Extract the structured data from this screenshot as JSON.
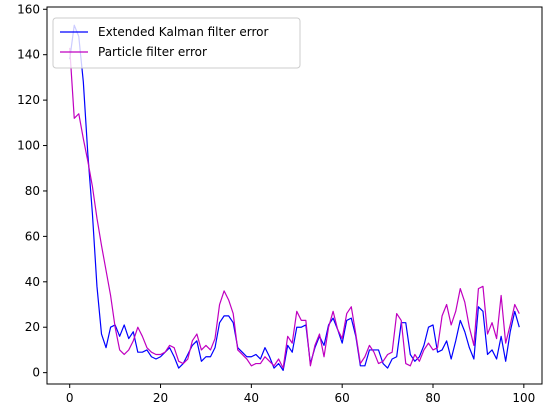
{
  "chart_data": {
    "type": "line",
    "title": "",
    "xlabel": "",
    "ylabel": "",
    "xlim": [
      -5,
      104
    ],
    "ylim": [
      -5,
      161
    ],
    "xticks": [
      0,
      20,
      40,
      60,
      80,
      100
    ],
    "yticks": [
      0,
      20,
      40,
      60,
      80,
      100,
      120,
      140,
      160
    ],
    "grid": false,
    "legend_position": "top-left",
    "series": [
      {
        "name": "Extended Kalman filter error",
        "color": "#0000ff",
        "x": [
          0,
          1,
          2,
          3,
          4,
          5,
          6,
          7,
          8,
          9,
          10,
          11,
          12,
          13,
          14,
          15,
          16,
          17,
          18,
          19,
          20,
          21,
          22,
          23,
          24,
          25,
          26,
          27,
          28,
          29,
          30,
          31,
          32,
          33,
          34,
          35,
          36,
          37,
          38,
          39,
          40,
          41,
          42,
          43,
          44,
          45,
          46,
          47,
          48,
          49,
          50,
          51,
          52,
          53,
          54,
          55,
          56,
          57,
          58,
          59,
          60,
          61,
          62,
          63,
          64,
          65,
          66,
          67,
          68,
          69,
          70,
          71,
          72,
          73,
          74,
          75,
          76,
          77,
          78,
          79,
          80,
          81,
          82,
          83,
          84,
          85,
          86,
          87,
          88,
          89,
          90,
          91,
          92,
          93,
          94,
          95,
          96,
          97,
          98,
          99
        ],
        "values": [
          138,
          153,
          148,
          128,
          96,
          70,
          38,
          17,
          11,
          20,
          21,
          16,
          21,
          15,
          18,
          9,
          9,
          10,
          7,
          6,
          7,
          9,
          11,
          7,
          2,
          4,
          8,
          12,
          14,
          5,
          7,
          7,
          11,
          22,
          25,
          25,
          22,
          11,
          9,
          7,
          7,
          8,
          6,
          11,
          7,
          2,
          4,
          1,
          12,
          9,
          20,
          20,
          21,
          4,
          11,
          16,
          12,
          21,
          24,
          19,
          13,
          23,
          24,
          16,
          3,
          3,
          10,
          10,
          10,
          4,
          2,
          6,
          7,
          22,
          22,
          8,
          5,
          7,
          12,
          20,
          21,
          9,
          10,
          14,
          6,
          14,
          23,
          18,
          11,
          6,
          29,
          27,
          8,
          10,
          6,
          16,
          5,
          18,
          27,
          20
        ]
      },
      {
        "name": "Particle filter error",
        "color": "#c000c0",
        "x": [
          0,
          1,
          2,
          3,
          4,
          5,
          6,
          7,
          8,
          9,
          10,
          11,
          12,
          13,
          14,
          15,
          16,
          17,
          18,
          19,
          20,
          21,
          22,
          23,
          24,
          25,
          26,
          27,
          28,
          29,
          30,
          31,
          32,
          33,
          34,
          35,
          36,
          37,
          38,
          39,
          40,
          41,
          42,
          43,
          44,
          45,
          46,
          47,
          48,
          49,
          50,
          51,
          52,
          53,
          54,
          55,
          56,
          57,
          58,
          59,
          60,
          61,
          62,
          63,
          64,
          65,
          66,
          67,
          68,
          69,
          70,
          71,
          72,
          73,
          74,
          75,
          76,
          77,
          78,
          79,
          80,
          81,
          82,
          83,
          84,
          85,
          86,
          87,
          88,
          89,
          90,
          91,
          92,
          93,
          94,
          95,
          96,
          97,
          98,
          99
        ],
        "values": [
          143,
          112,
          114,
          103,
          93,
          82,
          68,
          56,
          45,
          34,
          20,
          10,
          8,
          10,
          14,
          20,
          16,
          11,
          9,
          8,
          8,
          9,
          12,
          11,
          5,
          4,
          6,
          14,
          17,
          10,
          12,
          10,
          15,
          30,
          36,
          32,
          26,
          10,
          8,
          6,
          3,
          4,
          4,
          7,
          5,
          3,
          6,
          2,
          16,
          13,
          27,
          23,
          23,
          3,
          12,
          17,
          7,
          20,
          27,
          19,
          15,
          26,
          29,
          17,
          4,
          7,
          12,
          9,
          4,
          5,
          8,
          9,
          26,
          23,
          4,
          3,
          8,
          5,
          10,
          13,
          10,
          11,
          25,
          30,
          21,
          27,
          37,
          31,
          20,
          12,
          37,
          38,
          17,
          22,
          15,
          34,
          13,
          21,
          30,
          26
        ]
      }
    ]
  }
}
